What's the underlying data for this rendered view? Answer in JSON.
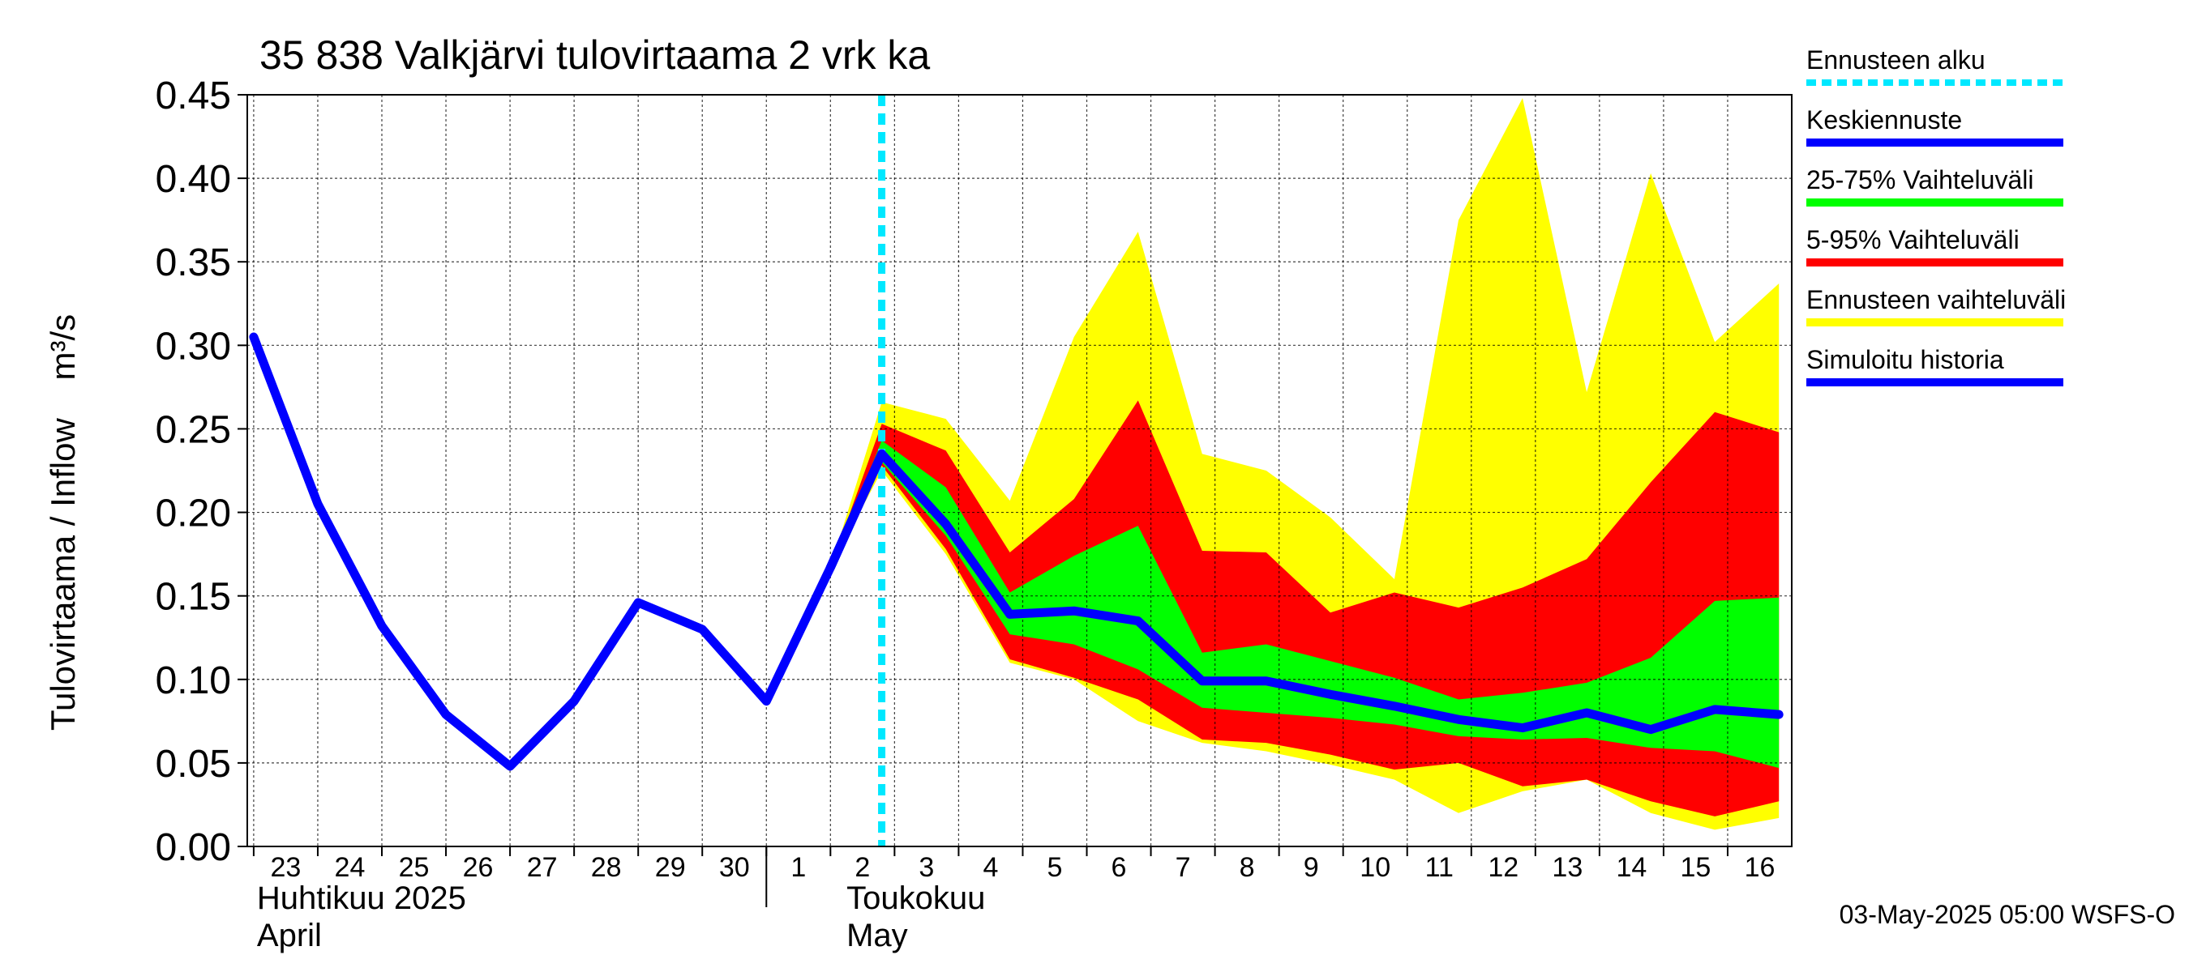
{
  "chart_data": {
    "type": "area",
    "title": "35 838 Valkjärvi tulovirtaama 2 vrk ka",
    "ylabel": "Tulovirtaama / Inflow    m³/s",
    "ylim": [
      0,
      0.45
    ],
    "yticks": [
      "0.00",
      "0.05",
      "0.10",
      "0.15",
      "0.20",
      "0.25",
      "0.30",
      "0.35",
      "0.40",
      "0.45"
    ],
    "xlim": [
      -0.1,
      24.0
    ],
    "days": [
      {
        "label": "23",
        "x": 0
      },
      {
        "label": "24",
        "x": 1
      },
      {
        "label": "25",
        "x": 2
      },
      {
        "label": "26",
        "x": 3
      },
      {
        "label": "27",
        "x": 4
      },
      {
        "label": "28",
        "x": 5
      },
      {
        "label": "29",
        "x": 6
      },
      {
        "label": "30",
        "x": 7
      },
      {
        "label": "1",
        "x": 8
      },
      {
        "label": "2",
        "x": 9
      },
      {
        "label": "3",
        "x": 10
      },
      {
        "label": "4",
        "x": 11
      },
      {
        "label": "5",
        "x": 12
      },
      {
        "label": "6",
        "x": 13
      },
      {
        "label": "7",
        "x": 14
      },
      {
        "label": "8",
        "x": 15
      },
      {
        "label": "9",
        "x": 16
      },
      {
        "label": "10",
        "x": 17
      },
      {
        "label": "11",
        "x": 18
      },
      {
        "label": "12",
        "x": 19
      },
      {
        "label": "13",
        "x": 20
      },
      {
        "label": "14",
        "x": 21
      },
      {
        "label": "15",
        "x": 22
      },
      {
        "label": "16",
        "x": 23
      }
    ],
    "month_labels": [
      {
        "line1": "Huhtikuu  2025",
        "line2": "April",
        "x": 0
      },
      {
        "line1": "Toukokuu",
        "line2": "May",
        "x": 9.2
      }
    ],
    "month_separator_x": 8,
    "forecast_start_x": 9.8,
    "history": {
      "name": "Simuloitu historia",
      "x": [
        0,
        1,
        2,
        3,
        4,
        5,
        6,
        7,
        8,
        9,
        9.8
      ],
      "y": [
        0.305,
        0.205,
        0.132,
        0.079,
        0.048,
        0.087,
        0.146,
        0.13,
        0.087,
        0.167,
        0.235
      ]
    },
    "forecast_x": [
      9.0,
      9.8,
      10.8,
      11.8,
      12.8,
      13.8,
      14.8,
      15.8,
      16.8,
      17.8,
      18.8,
      19.8,
      20.8,
      21.8,
      22.8,
      23.8
    ],
    "median": {
      "name": "Keskiennuste",
      "y": [
        0.167,
        0.235,
        0.193,
        0.139,
        0.141,
        0.135,
        0.099,
        0.099,
        0.091,
        0.084,
        0.076,
        0.071,
        0.08,
        0.07,
        0.082,
        0.079
      ]
    },
    "band_full": {
      "name": "Ennusteen vaihteluväli",
      "low": [
        0.167,
        0.225,
        0.175,
        0.11,
        0.1,
        0.075,
        0.062,
        0.057,
        0.049,
        0.04,
        0.02,
        0.033,
        0.04,
        0.02,
        0.01,
        0.017
      ],
      "high": [
        0.167,
        0.266,
        0.256,
        0.207,
        0.305,
        0.368,
        0.235,
        0.225,
        0.197,
        0.16,
        0.375,
        0.448,
        0.272,
        0.403,
        0.302,
        0.337
      ]
    },
    "band_5_95": {
      "name": "5-95% Vaihteluväli",
      "low": [
        0.167,
        0.228,
        0.178,
        0.112,
        0.101,
        0.088,
        0.064,
        0.062,
        0.055,
        0.046,
        0.05,
        0.036,
        0.04,
        0.027,
        0.018,
        0.027
      ],
      "high": [
        0.167,
        0.253,
        0.237,
        0.176,
        0.208,
        0.267,
        0.177,
        0.176,
        0.14,
        0.152,
        0.143,
        0.155,
        0.172,
        0.218,
        0.26,
        0.248
      ]
    },
    "band_25_75": {
      "name": "25-75% Vaihteluväli",
      "low": [
        0.167,
        0.23,
        0.186,
        0.127,
        0.121,
        0.106,
        0.083,
        0.08,
        0.077,
        0.073,
        0.066,
        0.064,
        0.065,
        0.059,
        0.057,
        0.047
      ],
      "high": [
        0.167,
        0.243,
        0.215,
        0.152,
        0.174,
        0.192,
        0.116,
        0.121,
        0.111,
        0.101,
        0.088,
        0.092,
        0.098,
        0.113,
        0.147,
        0.149
      ]
    },
    "legend": [
      {
        "label": "Ennusteen alku",
        "color": "#00e8ff",
        "style": "dashed"
      },
      {
        "label": "Keskiennuste",
        "color": "#0000ff",
        "style": "solid"
      },
      {
        "label": "25-75% Vaihteluväli",
        "color": "#00ff00",
        "style": "solid"
      },
      {
        "label": "5-95% Vaihteluväli",
        "color": "#ff0000",
        "style": "solid"
      },
      {
        "label": "Ennusteen vaihteluväli",
        "color": "#ffff00",
        "style": "solid"
      },
      {
        "label": "Simuloitu historia",
        "color": "#0000ff",
        "style": "solid"
      }
    ],
    "timestamp": "03-May-2025 05:00 WSFS-O",
    "colors": {
      "history": "#0000ff",
      "median": "#0000ff",
      "band_25_75": "#00ff00",
      "band_5_95": "#ff0000",
      "band_full": "#ffff00",
      "forecast_start": "#00e8ff",
      "grid": "#000000"
    }
  }
}
